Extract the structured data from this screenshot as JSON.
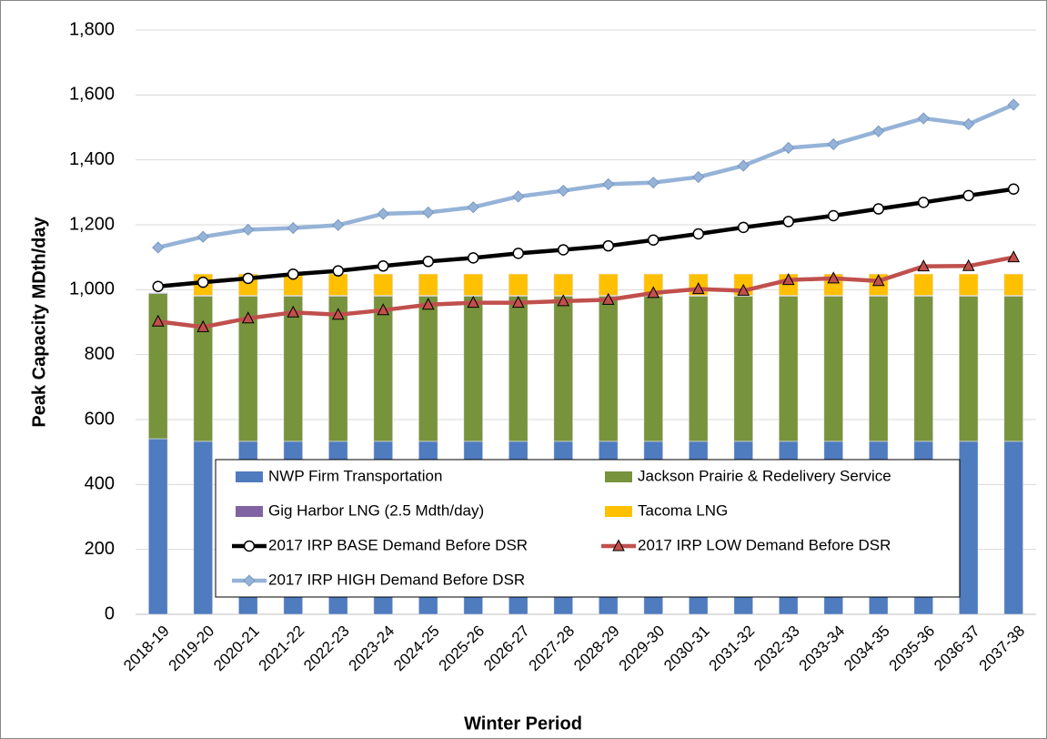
{
  "chart_data": {
    "type": "bar",
    "stacked": true,
    "x_label": "Winter Period",
    "y_label": "Peak Capacity MDth/day",
    "categories": [
      "2018-19",
      "2019-20",
      "2020-21",
      "2021-22",
      "2022-23",
      "2023-24",
      "2024-25",
      "2025-26",
      "2026-27",
      "2027-28",
      "2028-29",
      "2029-30",
      "2030-31",
      "2031-32",
      "2032-33",
      "2033-34",
      "2034-35",
      "2035-36",
      "2036-37",
      "2037-38"
    ],
    "ylim": [
      0,
      1800
    ],
    "yticks": [
      0,
      200,
      400,
      600,
      800,
      {
        "value": 1000,
        "label": "1,000"
      },
      {
        "value": 1200,
        "label": "1,200"
      },
      {
        "value": 1400,
        "label": "1,400"
      },
      {
        "value": 1600,
        "label": "1,600"
      },
      {
        "value": 1800,
        "label": "1,800"
      }
    ],
    "grid": true,
    "legend": "bottom-center",
    "series": [
      {
        "name": "NWP Firm Transportation",
        "type": "bar",
        "color": "#4f7bbf",
        "values": [
          541,
          533,
          533,
          533,
          533,
          533,
          533,
          533,
          533,
          533,
          533,
          533,
          533,
          533,
          533,
          533,
          533,
          533,
          533,
          533
        ]
      },
      {
        "name": "Jackson Prairie & Redelivery Service",
        "type": "bar",
        "color": "#77933c",
        "values": [
          447,
          447,
          447,
          447,
          447,
          447,
          447,
          447,
          447,
          447,
          447,
          447,
          447,
          447,
          447,
          447,
          447,
          447,
          447,
          447
        ]
      },
      {
        "name": "Gig Harbor LNG (2.5 Mdth/day)",
        "type": "bar",
        "color": "#8064a2",
        "values": [
          2.5,
          2.5,
          2.5,
          2.5,
          2.5,
          2.5,
          2.5,
          2.5,
          2.5,
          2.5,
          2.5,
          2.5,
          2.5,
          2.5,
          2.5,
          2.5,
          2.5,
          2.5,
          2.5,
          2.5
        ]
      },
      {
        "name": "Tacoma LNG",
        "type": "bar",
        "color": "#ffc000",
        "values": [
          0,
          66,
          66,
          66,
          66,
          66,
          66,
          66,
          66,
          66,
          66,
          66,
          66,
          66,
          66,
          66,
          66,
          66,
          66,
          66
        ]
      },
      {
        "name": "2017 IRP BASE Demand Before DSR",
        "type": "line",
        "color": "#000000",
        "marker": "circle",
        "values": [
          1010,
          1023,
          1035,
          1048,
          1058,
          1073,
          1087,
          1098,
          1112,
          1123,
          1135,
          1153,
          1172,
          1192,
          1210,
          1228,
          1249,
          1269,
          1290,
          1310
        ]
      },
      {
        "name": "2017 IRP LOW Demand Before DSR",
        "type": "line",
        "color": "#c0504d",
        "marker": "triangle",
        "values": [
          902,
          885,
          912,
          930,
          923,
          937,
          954,
          960,
          960,
          965,
          969,
          990,
          1002,
          997,
          1030,
          1035,
          1027,
          1072,
          1073,
          1100
        ]
      },
      {
        "name": "2017 IRP HIGH Demand Before DSR",
        "type": "line",
        "color": "#95b3d7",
        "marker": "diamond",
        "values": [
          1130,
          1163,
          1185,
          1190,
          1199,
          1234,
          1238,
          1254,
          1287,
          1305,
          1325,
          1330,
          1347,
          1382,
          1437,
          1448,
          1488,
          1528,
          1510,
          1570
        ]
      }
    ]
  }
}
